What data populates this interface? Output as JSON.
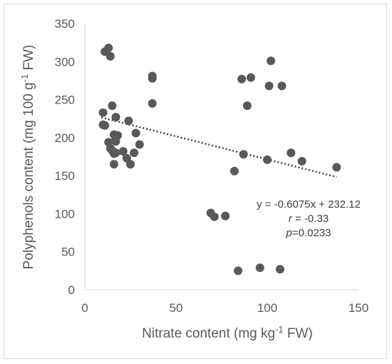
{
  "chart_data": {
    "type": "scatter",
    "title": "",
    "xlabel": {
      "before": "Nitrate content (mg kg",
      "sup": "-1",
      "after": " FW)"
    },
    "ylabel": {
      "before": "Polyphenols content (mg 100 g",
      "sup": "-1",
      "after": " FW)"
    },
    "xlim": [
      0,
      150
    ],
    "ylim": [
      0,
      350
    ],
    "xticks": [
      "0",
      "50",
      "100",
      "150"
    ],
    "yticks": [
      "0",
      "50",
      "100",
      "150",
      "200",
      "250",
      "300",
      "350"
    ],
    "grid": false,
    "marker_color": "#595959",
    "trendline_color": "#404040",
    "series": [
      {
        "points": [
          {
            "x": 11,
            "y": 313
          },
          {
            "x": 13,
            "y": 318
          },
          {
            "x": 14,
            "y": 307
          },
          {
            "x": 10,
            "y": 233
          },
          {
            "x": 15,
            "y": 242
          },
          {
            "x": 17,
            "y": 227
          },
          {
            "x": 10,
            "y": 217
          },
          {
            "x": 11,
            "y": 216
          },
          {
            "x": 13,
            "y": 194
          },
          {
            "x": 14,
            "y": 186
          },
          {
            "x": 16,
            "y": 204
          },
          {
            "x": 17,
            "y": 199
          },
          {
            "x": 18,
            "y": 203
          },
          {
            "x": 17,
            "y": 195
          },
          {
            "x": 15,
            "y": 183
          },
          {
            "x": 16,
            "y": 179
          },
          {
            "x": 17,
            "y": 180
          },
          {
            "x": 16,
            "y": 165
          },
          {
            "x": 21,
            "y": 182
          },
          {
            "x": 23,
            "y": 173
          },
          {
            "x": 24,
            "y": 222
          },
          {
            "x": 25,
            "y": 165
          },
          {
            "x": 27,
            "y": 180
          },
          {
            "x": 28,
            "y": 206
          },
          {
            "x": 30,
            "y": 191
          },
          {
            "x": 37,
            "y": 278
          },
          {
            "x": 37,
            "y": 281
          },
          {
            "x": 37,
            "y": 245
          },
          {
            "x": 69,
            "y": 101
          },
          {
            "x": 71,
            "y": 96
          },
          {
            "x": 77,
            "y": 97
          },
          {
            "x": 82,
            "y": 156
          },
          {
            "x": 84,
            "y": 25
          },
          {
            "x": 86,
            "y": 277
          },
          {
            "x": 87,
            "y": 178
          },
          {
            "x": 89,
            "y": 242
          },
          {
            "x": 91,
            "y": 279
          },
          {
            "x": 96,
            "y": 29
          },
          {
            "x": 100,
            "y": 171
          },
          {
            "x": 101,
            "y": 268
          },
          {
            "x": 102,
            "y": 301
          },
          {
            "x": 107,
            "y": 27
          },
          {
            "x": 108,
            "y": 268
          },
          {
            "x": 113,
            "y": 180
          },
          {
            "x": 119,
            "y": 169
          },
          {
            "x": 138,
            "y": 161
          }
        ]
      }
    ],
    "trendline": {
      "slope": -0.6075,
      "intercept": 232.12,
      "x_range": [
        9,
        138
      ]
    },
    "annotation": {
      "equation": "y = -0.6075x + 232.12",
      "r_sym": "r",
      "r_rest": " = -0.33",
      "p_sym": "p",
      "p_rest": "=0.0233"
    }
  }
}
